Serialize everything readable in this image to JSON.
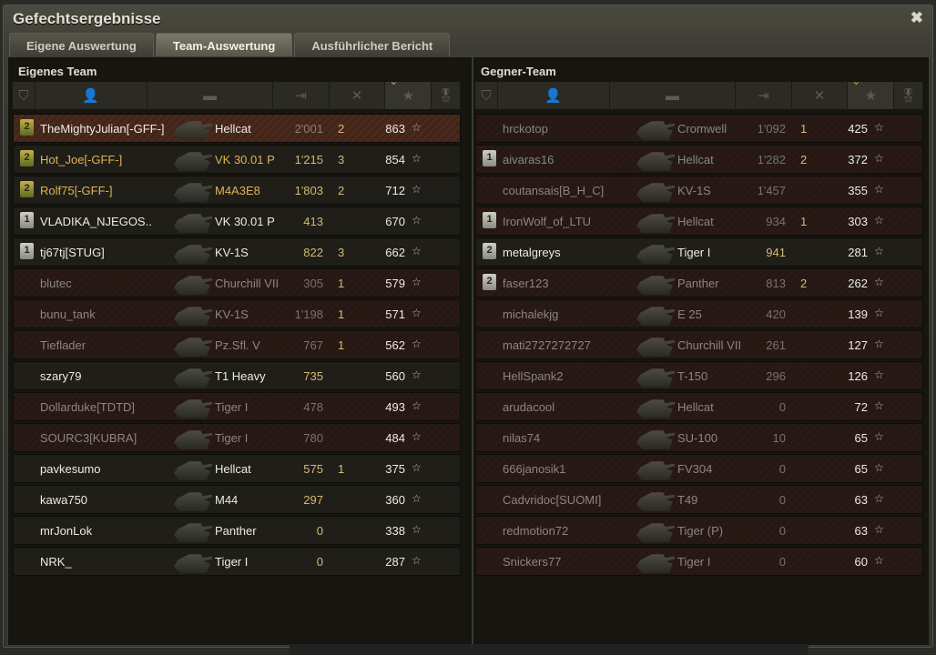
{
  "window": {
    "title": "Gefechtsergebnisse",
    "close_icon": "close-icon"
  },
  "tabs": [
    {
      "label": "Eigene Auswertung",
      "active": false
    },
    {
      "label": "Team-Auswertung",
      "active": true
    },
    {
      "label": "Ausführlicher Bericht",
      "active": false
    }
  ],
  "columns": {
    "icons": [
      "platoon-icon",
      "player-icon",
      "tank-icon",
      "damage-icon",
      "kills-icon",
      "xp-star-icon",
      "medal-icon"
    ],
    "sorted": "xp-star-icon"
  },
  "colors": {
    "gold": "#d8b872",
    "squad": "#e0b455",
    "dead_row": "#2a1a16"
  },
  "own_team": {
    "title": "Eigenes Team",
    "rows": [
      {
        "platoon": "2",
        "name": "TheMightyJulian[-GFF-]",
        "tank": "Hellcat",
        "damage": "2'001",
        "kills": "2",
        "xp": "863",
        "state": "self"
      },
      {
        "platoon": "2",
        "name": "Hot_Joe[-GFF-]",
        "tank": "VK 30.01 P",
        "damage": "1'215",
        "kills": "3",
        "xp": "854",
        "state": "gff"
      },
      {
        "platoon": "2",
        "name": "Rolf75[-GFF-]",
        "tank": "M4A3E8",
        "damage": "1'803",
        "kills": "2",
        "xp": "712",
        "state": "gff"
      },
      {
        "platoon": "1",
        "name": "VLADIKA_NJEGOS..",
        "tank": "VK 30.01 P",
        "damage": "413",
        "kills": "",
        "xp": "670",
        "state": "alive"
      },
      {
        "platoon": "1",
        "name": "tj67tj[STUG]",
        "tank": "KV-1S",
        "damage": "822",
        "kills": "3",
        "xp": "662",
        "state": "alive"
      },
      {
        "platoon": "",
        "name": "blutec",
        "tank": "Churchill VII",
        "damage": "305",
        "kills": "1",
        "xp": "579",
        "state": "dead"
      },
      {
        "platoon": "",
        "name": "bunu_tank",
        "tank": "KV-1S",
        "damage": "1'198",
        "kills": "1",
        "xp": "571",
        "state": "dead"
      },
      {
        "platoon": "",
        "name": "Tieflader",
        "tank": "Pz.Sfl. V",
        "damage": "767",
        "kills": "1",
        "xp": "562",
        "state": "dead"
      },
      {
        "platoon": "",
        "name": "szary79",
        "tank": "T1 Heavy",
        "damage": "735",
        "kills": "",
        "xp": "560",
        "state": "alive"
      },
      {
        "platoon": "",
        "name": "Dollarduke[TDTD]",
        "tank": "Tiger I",
        "damage": "478",
        "kills": "",
        "xp": "493",
        "state": "dead"
      },
      {
        "platoon": "",
        "name": "SOURC3[KUBRA]",
        "tank": "Tiger I",
        "damage": "780",
        "kills": "",
        "xp": "484",
        "state": "dead"
      },
      {
        "platoon": "",
        "name": "pavkesumo",
        "tank": "Hellcat",
        "damage": "575",
        "kills": "1",
        "xp": "375",
        "state": "alive"
      },
      {
        "platoon": "",
        "name": "kawa750",
        "tank": "M44",
        "damage": "297",
        "kills": "",
        "xp": "360",
        "state": "alive"
      },
      {
        "platoon": "",
        "name": "mrJonLok",
        "tank": "Panther",
        "damage": "0",
        "kills": "",
        "xp": "338",
        "state": "alive"
      },
      {
        "platoon": "",
        "name": "NRK_",
        "tank": "Tiger I",
        "damage": "0",
        "kills": "",
        "xp": "287",
        "state": "alive"
      }
    ]
  },
  "enemy_team": {
    "title": "Gegner-Team",
    "rows": [
      {
        "platoon": "",
        "name": "hrckotop",
        "tank": "Cromwell",
        "damage": "1'092",
        "kills": "1",
        "xp": "425",
        "state": "dead"
      },
      {
        "platoon": "1",
        "name": "aivaras16",
        "tank": "Hellcat",
        "damage": "1'282",
        "kills": "2",
        "xp": "372",
        "state": "dead"
      },
      {
        "platoon": "",
        "name": "coutansais[B_H_C]",
        "tank": "KV-1S",
        "damage": "1'457",
        "kills": "",
        "xp": "355",
        "state": "dead"
      },
      {
        "platoon": "1",
        "name": "IronWolf_of_LTU",
        "tank": "Hellcat",
        "damage": "934",
        "kills": "1",
        "xp": "303",
        "state": "dead"
      },
      {
        "platoon": "2",
        "name": "metalgreys",
        "tank": "Tiger I",
        "damage": "941",
        "kills": "",
        "xp": "281",
        "state": "alive"
      },
      {
        "platoon": "2",
        "name": "faser123",
        "tank": "Panther",
        "damage": "813",
        "kills": "2",
        "xp": "262",
        "state": "dead"
      },
      {
        "platoon": "",
        "name": "michalekjg",
        "tank": "E 25",
        "damage": "420",
        "kills": "",
        "xp": "139",
        "state": "dead"
      },
      {
        "platoon": "",
        "name": "mati2727272727",
        "tank": "Churchill VII",
        "damage": "261",
        "kills": "",
        "xp": "127",
        "state": "dead"
      },
      {
        "platoon": "",
        "name": "HellSpank2",
        "tank": "T-150",
        "damage": "296",
        "kills": "",
        "xp": "126",
        "state": "dead"
      },
      {
        "platoon": "",
        "name": "arudacool",
        "tank": "Hellcat",
        "damage": "0",
        "kills": "",
        "xp": "72",
        "state": "dead"
      },
      {
        "platoon": "",
        "name": "nilas74",
        "tank": "SU-100",
        "damage": "10",
        "kills": "",
        "xp": "65",
        "state": "dead"
      },
      {
        "platoon": "",
        "name": "666janosik1",
        "tank": "FV304",
        "damage": "0",
        "kills": "",
        "xp": "65",
        "state": "dead"
      },
      {
        "platoon": "",
        "name": "Cadvridoc[SUOMI]",
        "tank": "T49",
        "damage": "0",
        "kills": "",
        "xp": "63",
        "state": "dead"
      },
      {
        "platoon": "",
        "name": "redmotion72",
        "tank": "Tiger (P)",
        "damage": "0",
        "kills": "",
        "xp": "63",
        "state": "dead"
      },
      {
        "platoon": "",
        "name": "Snickers77",
        "tank": "Tiger I",
        "damage": "0",
        "kills": "",
        "xp": "60",
        "state": "dead"
      }
    ]
  }
}
